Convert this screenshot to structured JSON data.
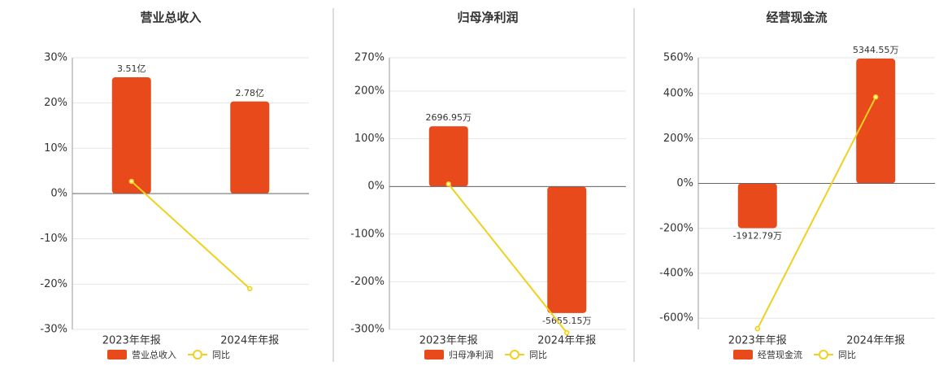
{
  "chart_data": [
    {
      "type": "bar",
      "title": "营业总收入",
      "categories": [
        "2023年年报",
        "2024年年报"
      ],
      "series": [
        {
          "name": "营业总收入",
          "color": "#e84a1c",
          "axis": "y2",
          "values": [
            3.51,
            2.78
          ],
          "value_labels": [
            "3.51亿",
            "2.78亿"
          ]
        },
        {
          "name": "同比",
          "color": "#f0d020",
          "values": [
            2.7,
            -21.0
          ]
        }
      ],
      "ylim": [
        -30,
        30
      ],
      "yticks": [
        {
          "value": 30,
          "label": "30%"
        },
        {
          "value": 20,
          "label": "20%"
        },
        {
          "value": 10,
          "label": "10%"
        },
        {
          "value": 0,
          "label": "0%"
        },
        {
          "value": -10,
          "label": "-10%"
        },
        {
          "value": -20,
          "label": "-20%"
        },
        {
          "value": -30,
          "label": "-30%"
        }
      ],
      "y2lim": [
        -4.1,
        4.1
      ],
      "grid": true
    },
    {
      "type": "bar",
      "title": "归母净利润",
      "categories": [
        "2023年年报",
        "2024年年报"
      ],
      "series": [
        {
          "name": "归母净利润",
          "color": "#e84a1c",
          "axis": "y2",
          "values": [
            2696.95,
            -5655.15
          ],
          "value_labels": [
            "2696.95万",
            "-5655.15万"
          ]
        },
        {
          "name": "同比",
          "color": "#f0d020",
          "values": [
            5,
            -307
          ]
        }
      ],
      "ylim": [
        -300,
        270
      ],
      "yticks": [
        {
          "value": 270,
          "label": "270%"
        },
        {
          "value": 200,
          "label": "200%"
        },
        {
          "value": 100,
          "label": "100%"
        },
        {
          "value": 0,
          "label": "0%"
        },
        {
          "value": -100,
          "label": "-100%"
        },
        {
          "value": -200,
          "label": "-200%"
        },
        {
          "value": -300,
          "label": "-300%"
        }
      ],
      "y2lim": [
        -6385,
        5760
      ],
      "grid": true
    },
    {
      "type": "bar",
      "title": "经营现金流",
      "categories": [
        "2023年年报",
        "2024年年报"
      ],
      "series": [
        {
          "name": "经营现金流",
          "color": "#e84a1c",
          "axis": "y2",
          "values": [
            -1912.79,
            5344.55
          ],
          "value_labels": [
            "-1912.79万",
            "5344.55万"
          ]
        },
        {
          "name": "同比",
          "color": "#f0d020",
          "values": [
            -647,
            385
          ]
        }
      ],
      "ylim": [
        -650,
        560
      ],
      "yticks": [
        {
          "value": 560,
          "label": "560%"
        },
        {
          "value": 400,
          "label": "400%"
        },
        {
          "value": 200,
          "label": "200%"
        },
        {
          "value": 0,
          "label": "0%"
        },
        {
          "value": -200,
          "label": "-200%"
        },
        {
          "value": -400,
          "label": "-400%"
        },
        {
          "value": -600,
          "label": "-600%"
        }
      ],
      "y2lim": [
        -6250,
        5380
      ],
      "grid": true
    }
  ]
}
